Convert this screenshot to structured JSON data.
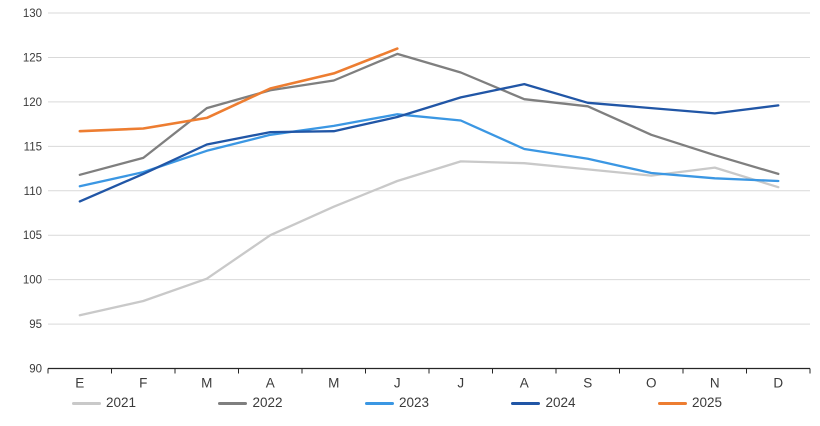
{
  "chart_data": {
    "type": "line",
    "title": "",
    "categories": [
      "E",
      "F",
      "M",
      "A",
      "M",
      "J",
      "J",
      "A",
      "S",
      "O",
      "N",
      "D"
    ],
    "y_axis": {
      "min": 90,
      "max": 130,
      "step": 5,
      "ticks": [
        90,
        95,
        100,
        105,
        110,
        115,
        120,
        125,
        130
      ]
    },
    "grid": true,
    "legend_position": "bottom",
    "series": [
      {
        "name": "2021",
        "color": "#C9C9C9",
        "values": [
          96.0,
          97.6,
          100.1,
          105.0,
          108.2,
          111.1,
          113.3,
          113.1,
          112.4,
          111.7,
          112.6,
          110.4
        ]
      },
      {
        "name": "2022",
        "color": "#7F7F7F",
        "values": [
          111.8,
          113.7,
          119.3,
          121.3,
          122.4,
          125.4,
          123.3,
          120.3,
          119.5,
          116.3,
          114.0,
          111.9
        ]
      },
      {
        "name": "2023",
        "color": "#3B97E3",
        "values": [
          110.5,
          112.1,
          114.5,
          116.3,
          117.3,
          118.6,
          117.9,
          114.7,
          113.6,
          112.0,
          111.4,
          111.1
        ]
      },
      {
        "name": "2024",
        "color": "#2156A6",
        "values": [
          108.8,
          111.9,
          115.2,
          116.6,
          116.7,
          118.3,
          120.5,
          122.0,
          119.9,
          119.3,
          118.7,
          119.6
        ]
      },
      {
        "name": "2025",
        "color": "#ED7D31",
        "values": [
          116.7,
          117.0,
          118.2,
          121.5,
          123.2,
          126.0,
          null,
          null,
          null,
          null,
          null,
          null
        ]
      }
    ],
    "style": {
      "gridline_color": "#D9D9D9",
      "axis_color": "#262626",
      "tick_label_color": "#3b3b3b",
      "background": "#FFFFFF"
    }
  }
}
